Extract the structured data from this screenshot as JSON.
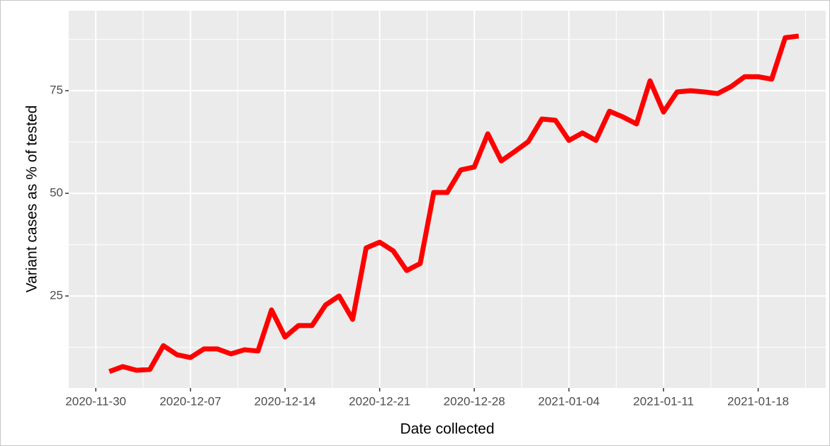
{
  "chart_data": {
    "type": "line",
    "x_label": "Date collected",
    "y_label": "Variant cases as % of tested",
    "x": [
      "2020-12-01",
      "2020-12-02",
      "2020-12-03",
      "2020-12-04",
      "2020-12-05",
      "2020-12-06",
      "2020-12-07",
      "2020-12-08",
      "2020-12-09",
      "2020-12-10",
      "2020-12-11",
      "2020-12-12",
      "2020-12-13",
      "2020-12-14",
      "2020-12-15",
      "2020-12-16",
      "2020-12-17",
      "2020-12-18",
      "2020-12-19",
      "2020-12-20",
      "2020-12-21",
      "2020-12-22",
      "2020-12-23",
      "2020-12-24",
      "2020-12-25",
      "2020-12-26",
      "2020-12-27",
      "2020-12-28",
      "2020-12-29",
      "2020-12-30",
      "2020-12-31",
      "2021-01-01",
      "2021-01-02",
      "2021-01-03",
      "2021-01-04",
      "2021-01-05",
      "2021-01-06",
      "2021-01-07",
      "2021-01-08",
      "2021-01-09",
      "2021-01-10",
      "2021-01-11",
      "2021-01-12",
      "2021-01-13",
      "2021-01-14",
      "2021-01-15",
      "2021-01-16",
      "2021-01-17",
      "2021-01-18",
      "2021-01-19",
      "2021-01-20",
      "2021-01-21"
    ],
    "series": [
      {
        "name": "Variant cases",
        "color": "#ff0000",
        "values": [
          6.6,
          7.8,
          6.9,
          7.1,
          12.9,
          10.7,
          10.0,
          12.1,
          12.1,
          10.9,
          11.9,
          11.6,
          21.6,
          15.0,
          17.8,
          17.8,
          22.8,
          25.0,
          19.3,
          36.7,
          38.1,
          36.0,
          31.2,
          32.9,
          50.2,
          50.2,
          55.7,
          56.4,
          64.5,
          57.9,
          60.2,
          62.6,
          68.1,
          67.8,
          62.9,
          64.7,
          62.9,
          70.0,
          68.6,
          66.9,
          77.4,
          69.8,
          74.7,
          75.0,
          74.7,
          74.3,
          76.0,
          78.4,
          78.4,
          77.8,
          87.9,
          88.3
        ]
      }
    ],
    "xlim": [
      "2020-11-28",
      "2021-01-23"
    ],
    "xticks": [
      "2020-11-30",
      "2020-12-07",
      "2020-12-14",
      "2020-12-21",
      "2020-12-28",
      "2021-01-04",
      "2021-01-11",
      "2021-01-18"
    ],
    "ylim": [
      2.6,
      94.5
    ],
    "yticks": [
      25,
      50,
      75
    ],
    "grid": true
  }
}
